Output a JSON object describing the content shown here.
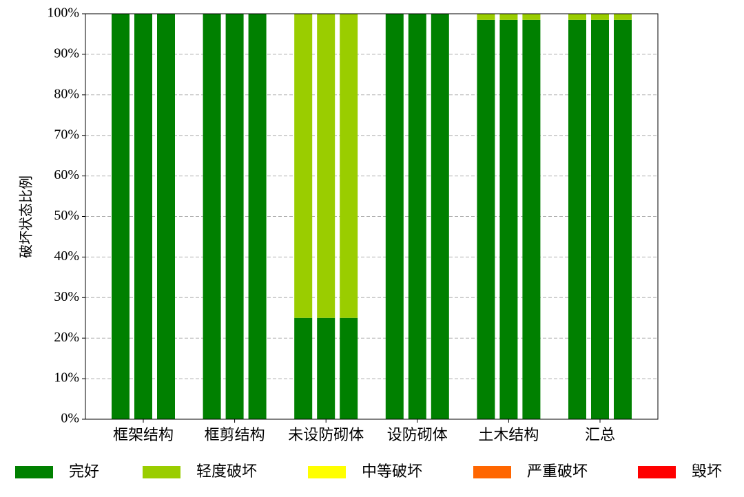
{
  "chart_data": {
    "type": "stacked-grouped-bar",
    "ylabel": "破坏状态比例",
    "categories": [
      "框架结构",
      "框剪结构",
      "未设防砌体",
      "设防砌体",
      "土木结构",
      "汇总"
    ],
    "series": [
      {
        "name": "完好",
        "color": "#008000",
        "values": [
          [
            100,
            100,
            100
          ],
          [
            100,
            100,
            100
          ],
          [
            25,
            25,
            25
          ],
          [
            100,
            100,
            100
          ],
          [
            98.5,
            98.5,
            98.5
          ],
          [
            98.5,
            98.5,
            98.5
          ]
        ]
      },
      {
        "name": "轻度破坏",
        "color": "#9acd00",
        "values": [
          [
            0,
            0,
            0
          ],
          [
            0,
            0,
            0
          ],
          [
            75,
            75,
            75
          ],
          [
            0,
            0,
            0
          ],
          [
            1.5,
            1.5,
            1.5
          ],
          [
            1.5,
            1.5,
            1.5
          ]
        ]
      },
      {
        "name": "中等破坏",
        "color": "#ffff00",
        "values": [
          [
            0,
            0,
            0
          ],
          [
            0,
            0,
            0
          ],
          [
            0,
            0,
            0
          ],
          [
            0,
            0,
            0
          ],
          [
            0,
            0,
            0
          ],
          [
            0,
            0,
            0
          ]
        ]
      },
      {
        "name": "严重破坏",
        "color": "#ff6600",
        "values": [
          [
            0,
            0,
            0
          ],
          [
            0,
            0,
            0
          ],
          [
            0,
            0,
            0
          ],
          [
            0,
            0,
            0
          ],
          [
            0,
            0,
            0
          ],
          [
            0,
            0,
            0
          ]
        ]
      },
      {
        "name": "毁坏",
        "color": "#ff0000",
        "values": [
          [
            0,
            0,
            0
          ],
          [
            0,
            0,
            0
          ],
          [
            0,
            0,
            0
          ],
          [
            0,
            0,
            0
          ],
          [
            0,
            0,
            0
          ],
          [
            0,
            0,
            0
          ]
        ]
      }
    ],
    "ylim": [
      0,
      100
    ],
    "yticks": [
      {
        "value": 0,
        "label": "0%"
      },
      {
        "value": 10,
        "label": "10%"
      },
      {
        "value": 20,
        "label": "20%"
      },
      {
        "value": 30,
        "label": "30%"
      },
      {
        "value": 40,
        "label": "40%"
      },
      {
        "value": 50,
        "label": "50%"
      },
      {
        "value": 60,
        "label": "60%"
      },
      {
        "value": 70,
        "label": "70%"
      },
      {
        "value": 80,
        "label": "80%"
      },
      {
        "value": 90,
        "label": "90%"
      },
      {
        "value": 100,
        "label": "100%"
      }
    ],
    "grid": true,
    "legend": "bottom"
  }
}
